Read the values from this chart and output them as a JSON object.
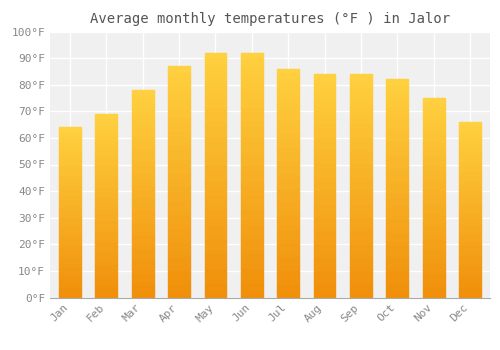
{
  "title": "Average monthly temperatures (°F ) in Jalor",
  "months": [
    "Jan",
    "Feb",
    "Mar",
    "Apr",
    "May",
    "Jun",
    "Jul",
    "Aug",
    "Sep",
    "Oct",
    "Nov",
    "Dec"
  ],
  "values": [
    64,
    69,
    78,
    87,
    92,
    92,
    86,
    84,
    84,
    82,
    75,
    66
  ],
  "bar_color_top": "#FFD050",
  "bar_color_bottom": "#F09010",
  "background_color": "#FFFFFF",
  "plot_bg_color": "#F0F0F0",
  "ylim": [
    0,
    100
  ],
  "yticks": [
    0,
    10,
    20,
    30,
    40,
    50,
    60,
    70,
    80,
    90,
    100
  ],
  "ytick_labels": [
    "0°F",
    "10°F",
    "20°F",
    "30°F",
    "40°F",
    "50°F",
    "60°F",
    "70°F",
    "80°F",
    "90°F",
    "100°F"
  ],
  "title_fontsize": 10,
  "tick_fontsize": 8,
  "font_family": "monospace",
  "bar_width": 0.6,
  "grid_color": "#FFFFFF",
  "spine_color": "#AAAAAA",
  "tick_color": "#888888",
  "title_color": "#555555"
}
